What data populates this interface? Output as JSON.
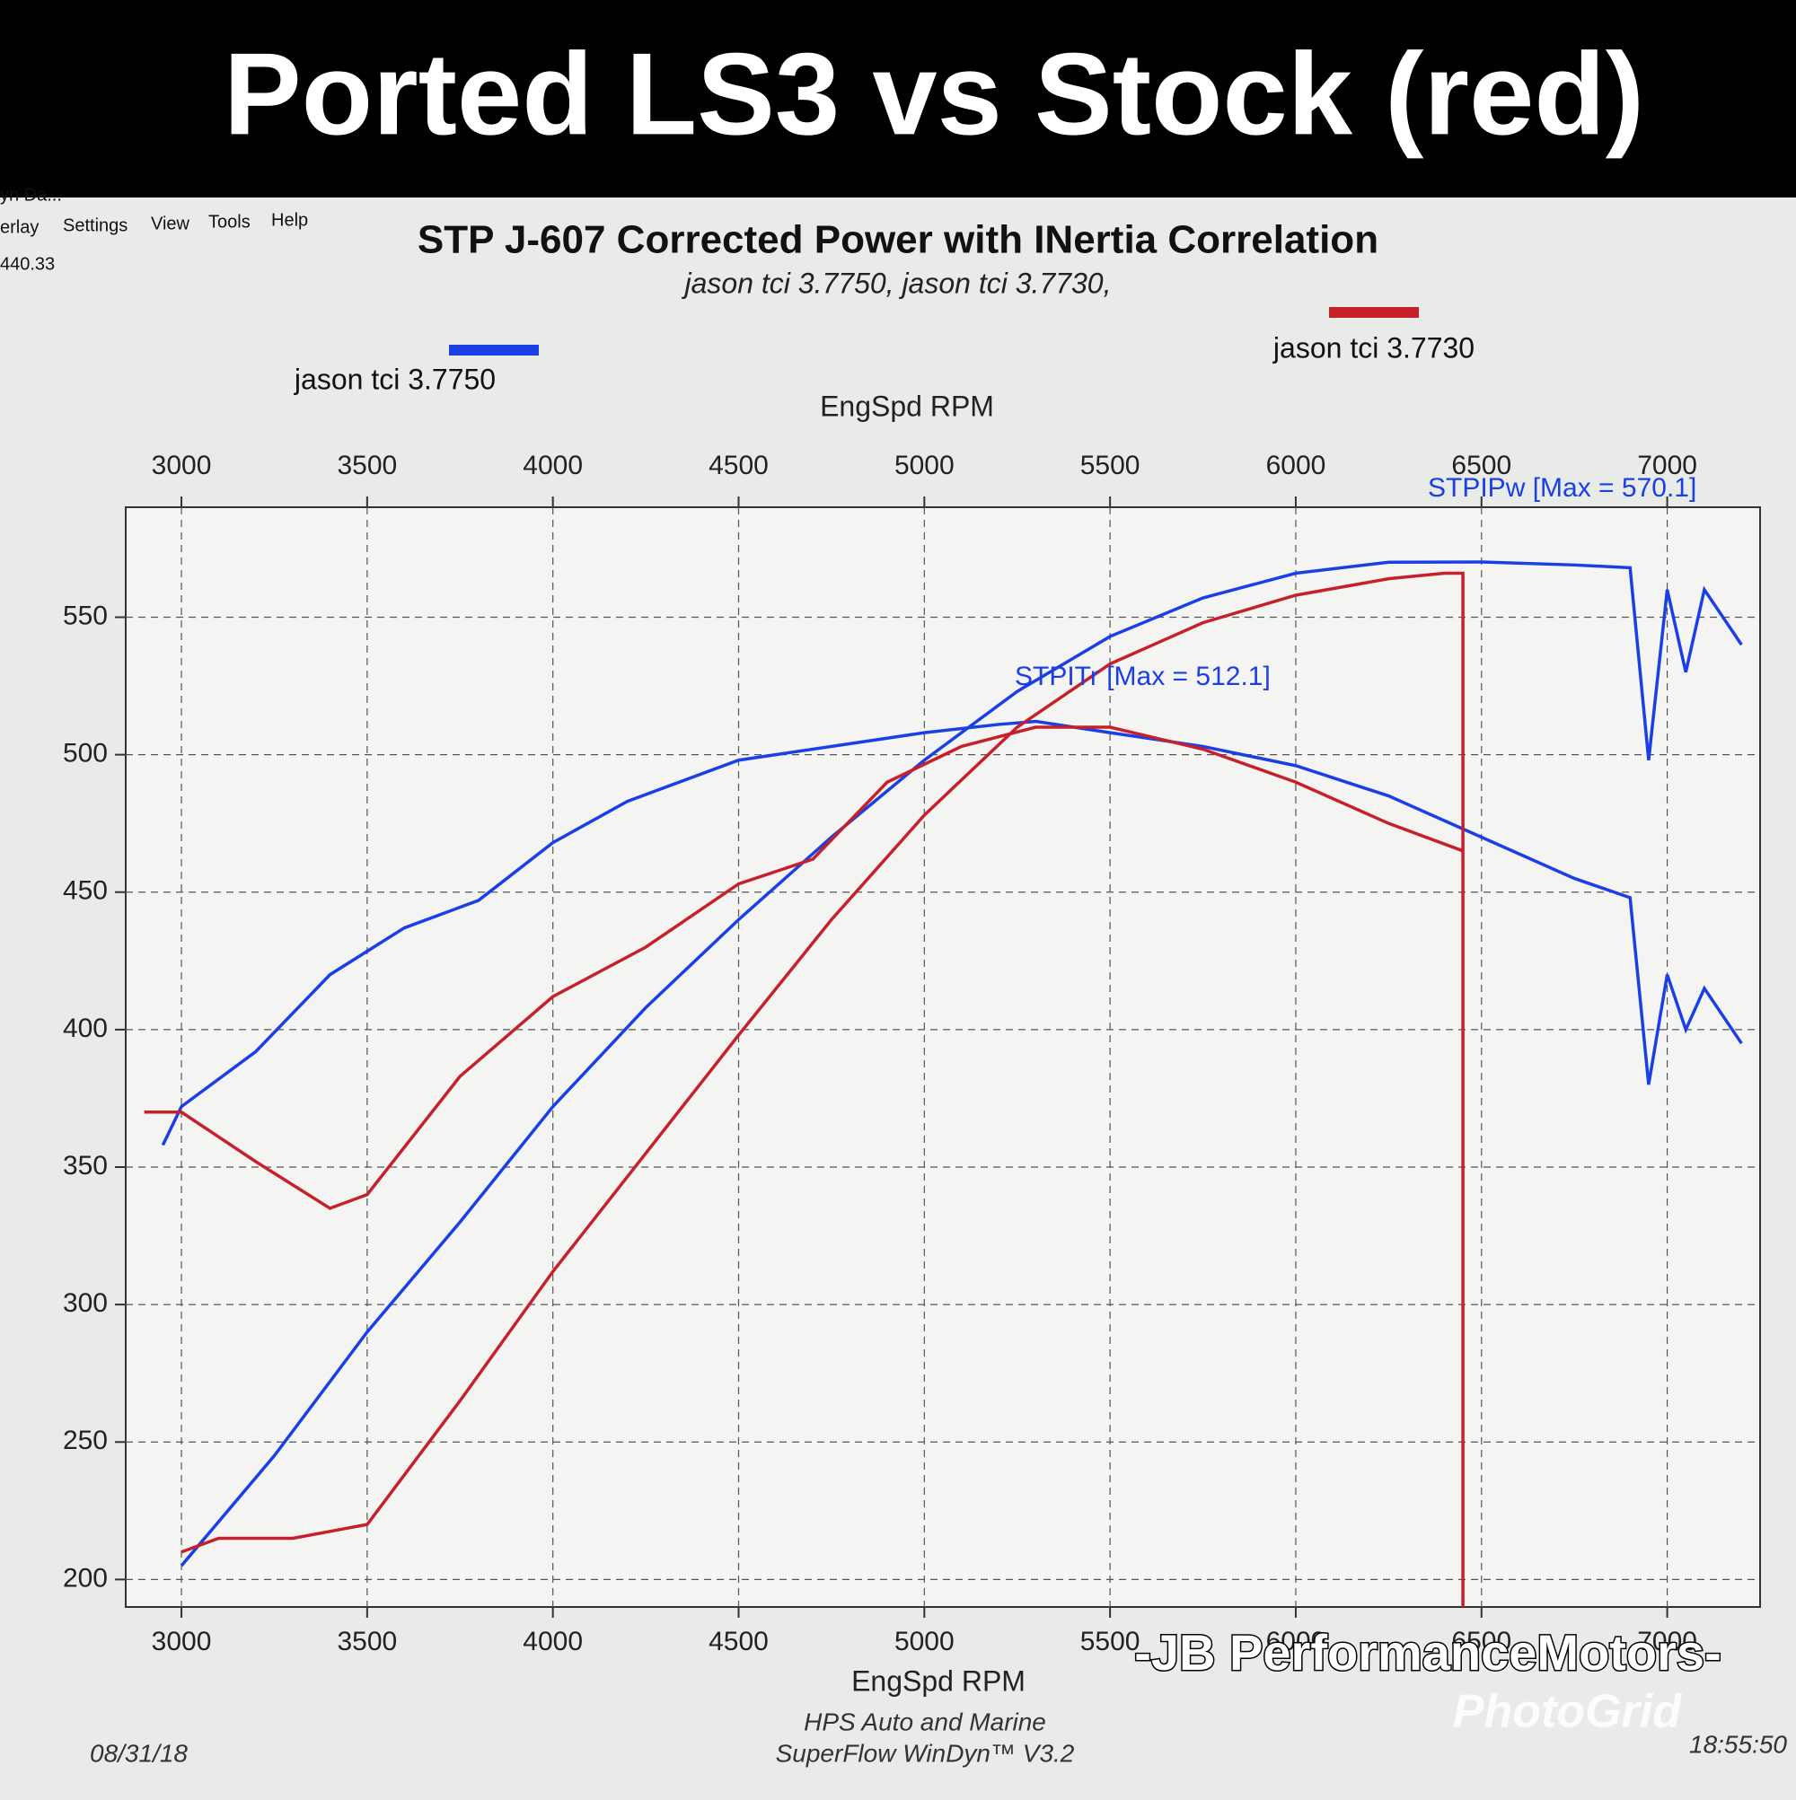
{
  "header": "Ported LS3 vs Stock (red)",
  "window": {
    "caption": "yn Da...",
    "menu": [
      "erlay",
      "Settings",
      "View",
      "Tools",
      "Help"
    ],
    "status": "440.33"
  },
  "chart_data": {
    "type": "line",
    "title": "STP J-607 Corrected Power with INertia Correlation",
    "subtitle": "jason tci 3.7750, jason tci 3.7730,",
    "xlabel": "EngSpd RPM",
    "xlim": [
      2850,
      7250
    ],
    "xticks": [
      3000,
      3500,
      4000,
      4500,
      5000,
      5500,
      6000,
      6500,
      7000
    ],
    "ylim": [
      190,
      590
    ],
    "yticks": [
      200,
      250,
      300,
      350,
      400,
      450,
      500,
      550
    ],
    "grid": true,
    "annotations": [
      "STPIPw [Max = 570.1]",
      "STPITr [Max = 512.1]"
    ],
    "series": [
      {
        "name": "jason tci 3.7750",
        "color": "#1a3fe6",
        "curves": [
          {
            "x": [
              3000,
              3250,
              3500,
              3750,
              4000,
              4250,
              4500,
              4750,
              5000,
              5250,
              5500,
              5750,
              6000,
              6250,
              6500,
              6750,
              6900,
              6950,
              7000,
              7050,
              7100,
              7200
            ],
            "values": [
              205,
              245,
              290,
              330,
              372,
              408,
              440,
              470,
              498,
              523,
              543,
              557,
              566,
              570,
              570.1,
              569,
              568,
              498,
              560,
              530,
              560,
              540
            ]
          },
          {
            "x": [
              2950,
              3000,
              3200,
              3400,
              3600,
              3800,
              4000,
              4200,
              4500,
              4800,
              5000,
              5200,
              5300,
              5500,
              5750,
              6000,
              6250,
              6500,
              6750,
              6900,
              6950,
              7000,
              7050,
              7100,
              7200
            ],
            "values": [
              358,
              372,
              392,
              420,
              437,
              447,
              468,
              483,
              498,
              504,
              508,
              511,
              512.1,
              508,
              503,
              496,
              485,
              470,
              455,
              448,
              380,
              420,
              400,
              415,
              395
            ]
          }
        ]
      },
      {
        "name": "jason tci 3.7730",
        "color": "#c8202a",
        "curves": [
          {
            "x": [
              3000,
              3100,
              3300,
              3500,
              3750,
              4000,
              4250,
              4500,
              4750,
              5000,
              5250,
              5500,
              5750,
              6000,
              6250,
              6400,
              6450,
              6450
            ],
            "values": [
              210,
              215,
              215,
              220,
              265,
              312,
              355,
              398,
              440,
              478,
              510,
              533,
              548,
              558,
              564,
              566,
              566,
              190
            ]
          },
          {
            "x": [
              2900,
              3000,
              3200,
              3400,
              3500,
              3750,
              4000,
              4250,
              4500,
              4700,
              4900,
              5100,
              5300,
              5500,
              5750,
              6000,
              6250,
              6450
            ],
            "values": [
              370,
              370,
              352,
              335,
              340,
              383,
              412,
              430,
              453,
              462,
              490,
              503,
              510,
              510,
              502,
              490,
              475,
              465
            ]
          }
        ]
      }
    ]
  },
  "footer": {
    "date": "08/31/18",
    "company": "HPS Auto and Marine",
    "software": "SuperFlow WinDyn™ V3.2",
    "time": "18:55:50"
  },
  "watermark": "-JB PerformanceMotors-",
  "credit": "PhotoGrid"
}
